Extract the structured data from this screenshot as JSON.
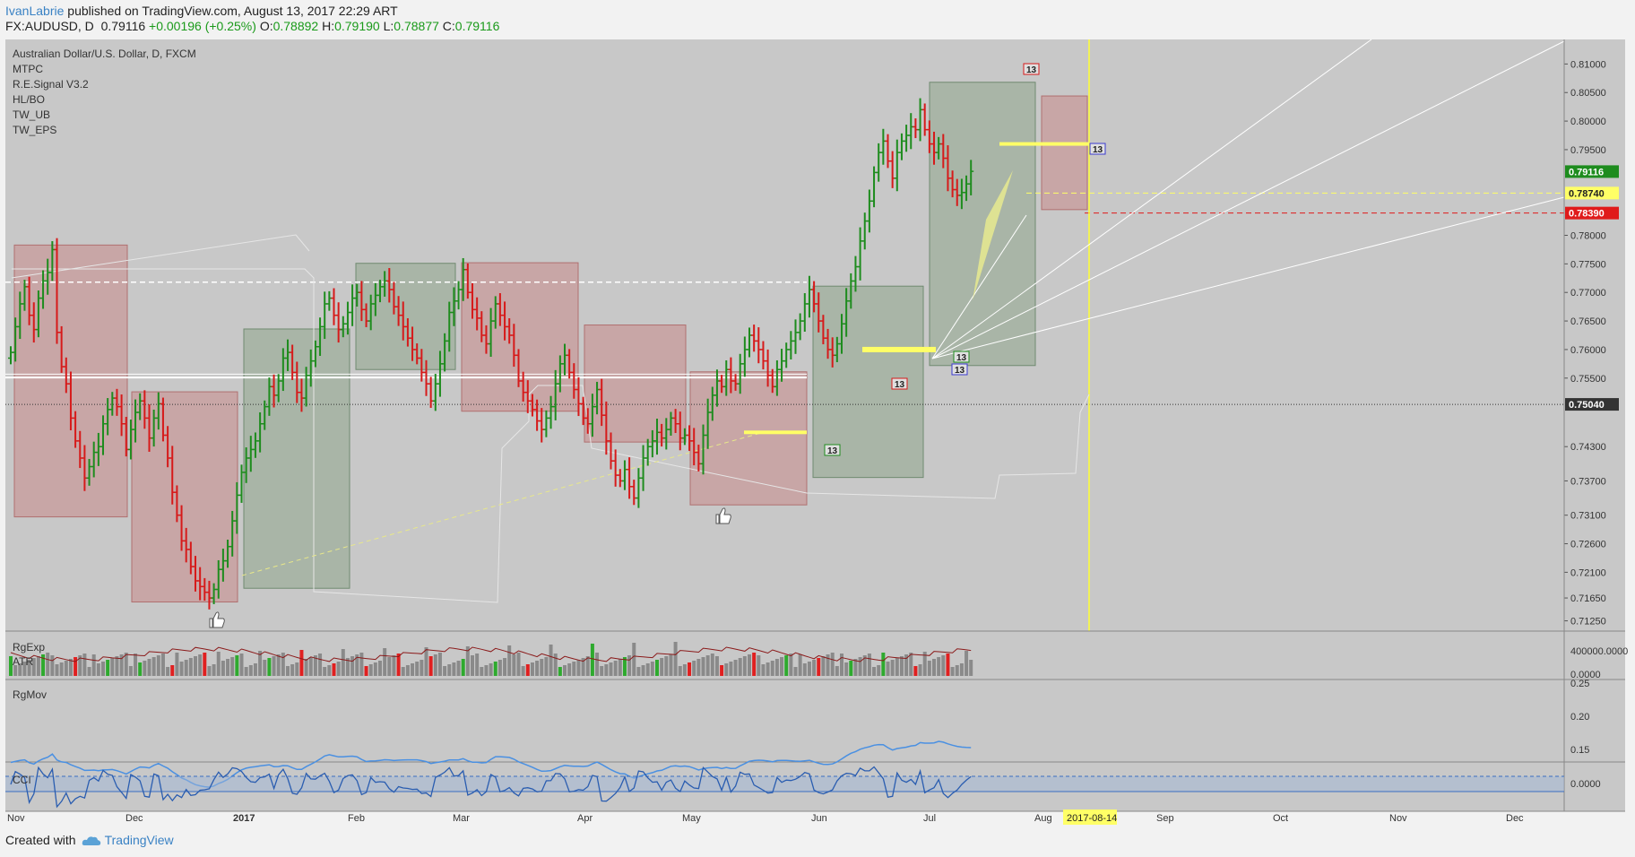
{
  "header": {
    "author": "IvanLabrie",
    "published_text": " published on TradingView.com, August 13, 2017 22:29 ART",
    "symbol_line": "FX:AUDUSD, D",
    "last_price": "0.79116",
    "change": "+0.00196 (+0.25%)",
    "open_label": "O:",
    "open": "0.78892",
    "high_label": "H:",
    "high": "0.79190",
    "low_label": "L:",
    "low": "0.78877",
    "close_label": "C:",
    "close": "0.79116"
  },
  "legend": [
    "Australian Dollar/U.S. Dollar, D, FXCM",
    "MTPC",
    "R.E.Signal V3.2",
    "HL/BO",
    "TW_UB",
    "TW_EPS"
  ],
  "panes": {
    "volume_labels": [
      "RgExp",
      "ATR"
    ],
    "rgmov_label": "RgMov",
    "cci_label": "CCI"
  },
  "footer": {
    "created_with": "Created with",
    "brand": "TradingView"
  },
  "colors": {
    "up": "#1e8c1e",
    "down": "#d61a1a",
    "background": "#c8c8c8",
    "rgmov": "#4a90e2",
    "highlight": "#ffff66",
    "red_zone": "#c88a8a",
    "green_zone": "#8fa58c"
  },
  "chart_data": {
    "type": "candlestick",
    "title": "Australian Dollar/U.S. Dollar, D, FXCM",
    "x_axis_labels": [
      "Nov",
      "Dec",
      "2017",
      "Feb",
      "Mar",
      "Apr",
      "May",
      "Jun",
      "Jul",
      "Aug",
      "2017-08-14",
      "Sep",
      "Oct",
      "Nov",
      "Dec"
    ],
    "y_axis_labels": [
      "0.81000",
      "0.80500",
      "0.80000",
      "0.79500",
      "0.79116",
      "0.78740",
      "0.78390",
      "0.78000",
      "0.77500",
      "0.77000",
      "0.76500",
      "0.76000",
      "0.75500",
      "0.75040",
      "0.74300",
      "0.73700",
      "0.73100",
      "0.72600",
      "0.72100",
      "0.71650",
      "0.71250"
    ],
    "price_tags": [
      {
        "label": "0.79116",
        "value": 0.79116,
        "color": "#1e8c1e"
      },
      {
        "label": "0.78740",
        "value": 0.7874,
        "color": "#ffff66"
      },
      {
        "label": "0.78390",
        "value": 0.7839,
        "color": "#e01b1b"
      },
      {
        "label": "0.75040",
        "value": 0.7504,
        "color": "#333333"
      }
    ],
    "ylim": [
      0.7118,
      0.8121
    ],
    "approx_closes": [
      0.7595,
      0.764,
      0.768,
      0.771,
      0.766,
      0.7635,
      0.769,
      0.772,
      0.7735,
      0.7775,
      0.763,
      0.757,
      0.754,
      0.748,
      0.744,
      0.741,
      0.7375,
      0.7395,
      0.742,
      0.743,
      0.747,
      0.7495,
      0.7515,
      0.75,
      0.747,
      0.7425,
      0.746,
      0.749,
      0.751,
      0.748,
      0.7445,
      0.748,
      0.7505,
      0.745,
      0.741,
      0.735,
      0.731,
      0.7265,
      0.725,
      0.722,
      0.7195,
      0.7185,
      0.7175,
      0.7165,
      0.718,
      0.7215,
      0.723,
      0.7255,
      0.73,
      0.7345,
      0.7385,
      0.741,
      0.7425,
      0.744,
      0.747,
      0.75,
      0.7535,
      0.752,
      0.7545,
      0.7585,
      0.7595,
      0.756,
      0.7525,
      0.7515,
      0.7555,
      0.758,
      0.7605,
      0.764,
      0.768,
      0.769,
      0.766,
      0.7635,
      0.7645,
      0.7665,
      0.769,
      0.77,
      0.767,
      0.765,
      0.768,
      0.7695,
      0.771,
      0.772,
      0.7705,
      0.7675,
      0.766,
      0.764,
      0.762,
      0.76,
      0.7585,
      0.756,
      0.754,
      0.751,
      0.754,
      0.7575,
      0.7615,
      0.7665,
      0.7685,
      0.7705,
      0.774,
      0.77,
      0.767,
      0.7655,
      0.7625,
      0.761,
      0.765,
      0.768,
      0.766,
      0.764,
      0.7625,
      0.759,
      0.7545,
      0.7525,
      0.751,
      0.7495,
      0.7475,
      0.746,
      0.748,
      0.75,
      0.754,
      0.7575,
      0.759,
      0.756,
      0.753,
      0.7505,
      0.748,
      0.747,
      0.75,
      0.753,
      0.7485,
      0.744,
      0.7405,
      0.738,
      0.737,
      0.739,
      0.736,
      0.734,
      0.7375,
      0.741,
      0.743,
      0.744,
      0.7455,
      0.7445,
      0.746,
      0.748,
      0.747,
      0.7445,
      0.745,
      0.744,
      0.742,
      0.74,
      0.745,
      0.749,
      0.752,
      0.7545,
      0.7535,
      0.7565,
      0.7545,
      0.754,
      0.7575,
      0.76,
      0.7625,
      0.7615,
      0.76,
      0.758,
      0.7555,
      0.7535,
      0.7565,
      0.758,
      0.76,
      0.7615,
      0.763,
      0.765,
      0.768,
      0.7705,
      0.768,
      0.765,
      0.762,
      0.76,
      0.759,
      0.761,
      0.7645,
      0.7685,
      0.772,
      0.7745,
      0.779,
      0.7825,
      0.786,
      0.791,
      0.7945,
      0.7965,
      0.793,
      0.79,
      0.7945,
      0.7965,
      0.7975,
      0.799,
      0.7985,
      0.802,
      0.7985,
      0.796,
      0.7945,
      0.796,
      0.7935,
      0.79,
      0.788,
      0.787,
      0.7875,
      0.789,
      0.7912
    ],
    "lower_panes": {
      "volume_axis": [
        "400000.0000",
        "0.0000"
      ],
      "rgmov_axis": [
        "0.25",
        "0.20",
        "0.15"
      ],
      "cci_axis": [
        "0.0000"
      ]
    }
  }
}
